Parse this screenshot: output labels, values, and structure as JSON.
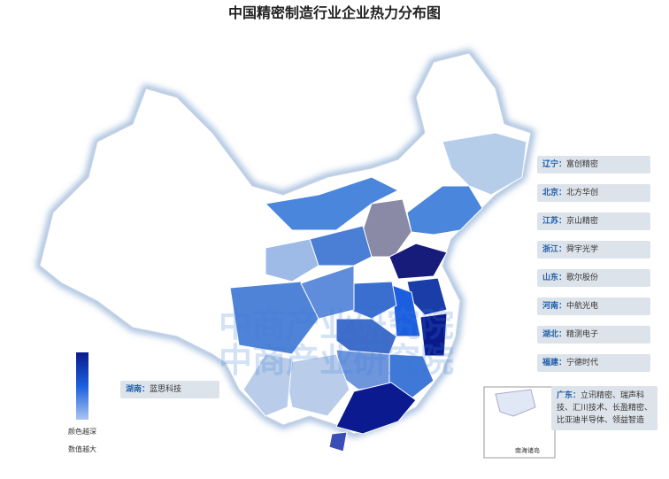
{
  "title": "中国精密制造行业企业热力分布图",
  "watermark": "中商产业研究院",
  "callouts": [
    {
      "province": "辽宁：",
      "companies": "富创精密"
    },
    {
      "province": "北京：",
      "companies": "北方华创"
    },
    {
      "province": "江苏：",
      "companies": "京山精密"
    },
    {
      "province": "浙江：",
      "companies": "舜宇光学"
    },
    {
      "province": "山东：",
      "companies": "歌尔股份"
    },
    {
      "province": "河南：",
      "companies": "中航光电"
    },
    {
      "province": "湖北：",
      "companies": "精测电子"
    },
    {
      "province": "福建：",
      "companies": "宁德时代"
    }
  ],
  "left_callout": {
    "province": "湖南：",
    "companies": "蓝思科技"
  },
  "guangdong_callout": {
    "province": "广东：",
    "companies": "立讯精密、瑞声科技、汇川技术、长盈精密、比亚迪半导体、领益智造"
  },
  "legend": {
    "top_label": "颜色越深",
    "bottom_label": "数值越大"
  },
  "inset_label": "南海诸岛"
}
